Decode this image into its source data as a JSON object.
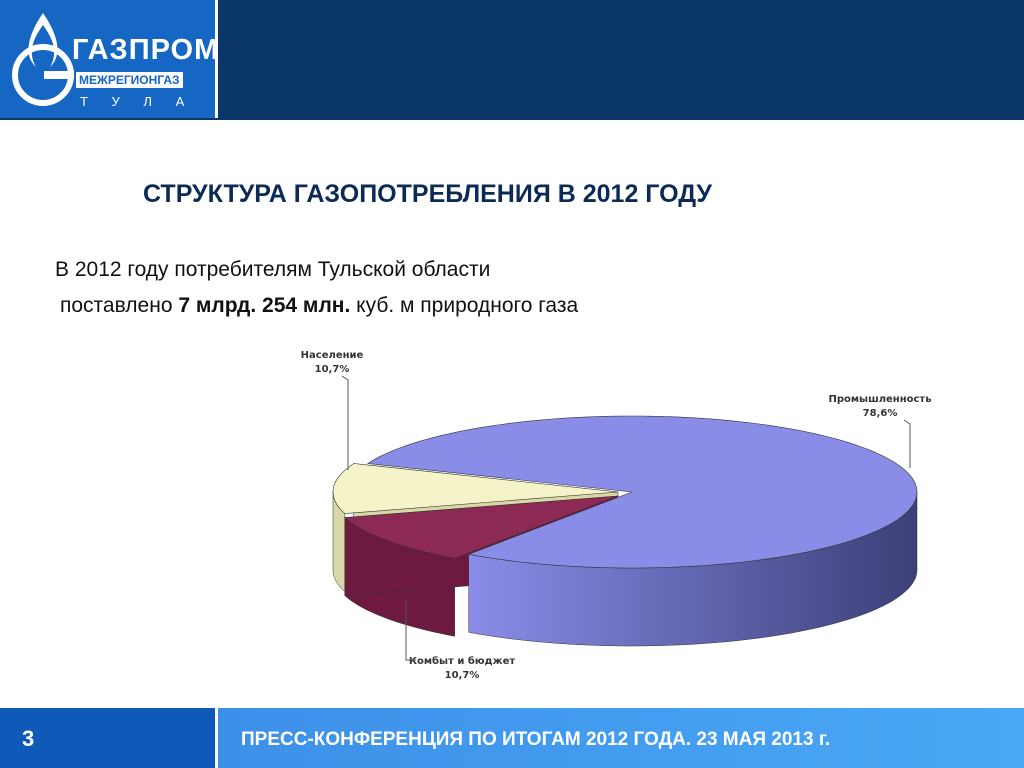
{
  "header": {
    "logo_main": "ГАЗПРОМ",
    "logo_sub": "МЕЖРЕГИОНГАЗ",
    "logo_city": "Т У Л А"
  },
  "title": "СТРУКТУРА ГАЗОПОТРЕБЛЕНИЯ В 2012 ГОДУ",
  "intro": {
    "line1": "В 2012 году потребителям Тульской области",
    "line2_start": "поставлено",
    "line2_bold": "7 млрд. 254 млн.",
    "line2_end": "куб. м природного газа"
  },
  "chart_data": {
    "type": "pie",
    "categories": [
      "Население",
      "Комбыт и бюджет",
      "Промышленность"
    ],
    "values": [
      10.7,
      10.7,
      78.6
    ],
    "value_labels": [
      "10,7%",
      "10,7%",
      "78,6%"
    ],
    "colors": [
      "#f4f4c8",
      "#8c2a55",
      "#8a8de8"
    ]
  },
  "footer": {
    "page": "3",
    "text": "ПРЕСС-КОНФЕРЕНЦИЯ ПО ИТОГАМ 2012 ГОДА. 23 МАЯ 2013 г."
  }
}
